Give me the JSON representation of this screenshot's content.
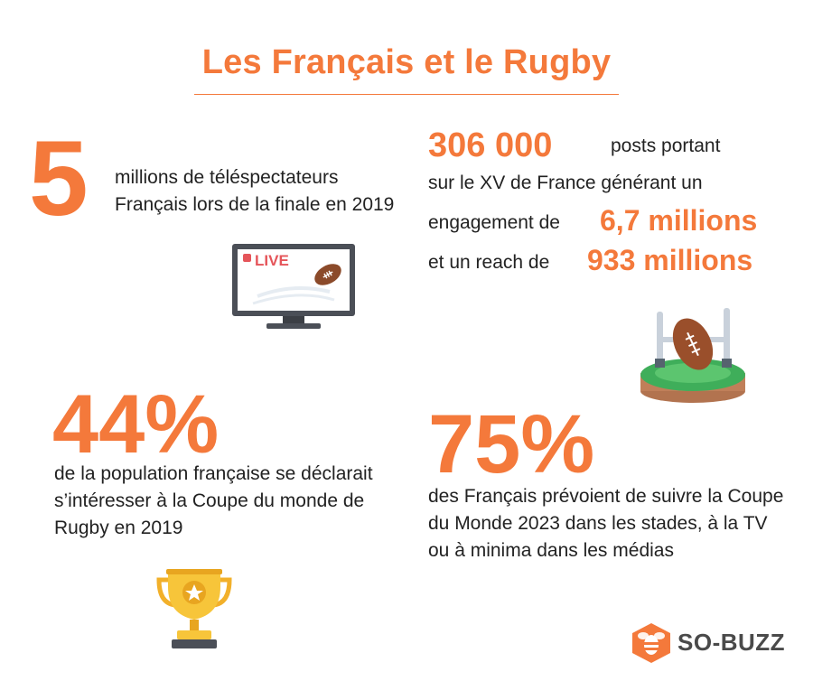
{
  "header": {
    "title": "Les Français et le Rugby"
  },
  "stats": {
    "viewers": {
      "value": "5",
      "text": "millions de téléspectateurs Français lors de la finale en 2019"
    },
    "posts": {
      "value": "306 000",
      "text_a": "posts portant",
      "text_b": "sur le XV de France générant un",
      "text_c": "engagement de",
      "engagement": "6,7 millions",
      "text_d": "et un reach de",
      "reach": "933 millions"
    },
    "interest": {
      "value": "44%",
      "text": "de la population française se déclarait s’intéresser à la Coupe du monde de Rugby en 2019"
    },
    "follow": {
      "value": "75%",
      "text": "des Français prévoient de suivre la Coupe du Monde 2023 dans les stades, à la TV ou à minima dans les médias"
    }
  },
  "tv_badge": "LIVE",
  "logo": {
    "text": "SO-BUZZ"
  },
  "colors": {
    "accent": "#f4793b",
    "text": "#222222"
  },
  "icons": [
    "tv-live-icon",
    "rugby-goal-icon",
    "trophy-icon",
    "bee-logo-icon"
  ]
}
